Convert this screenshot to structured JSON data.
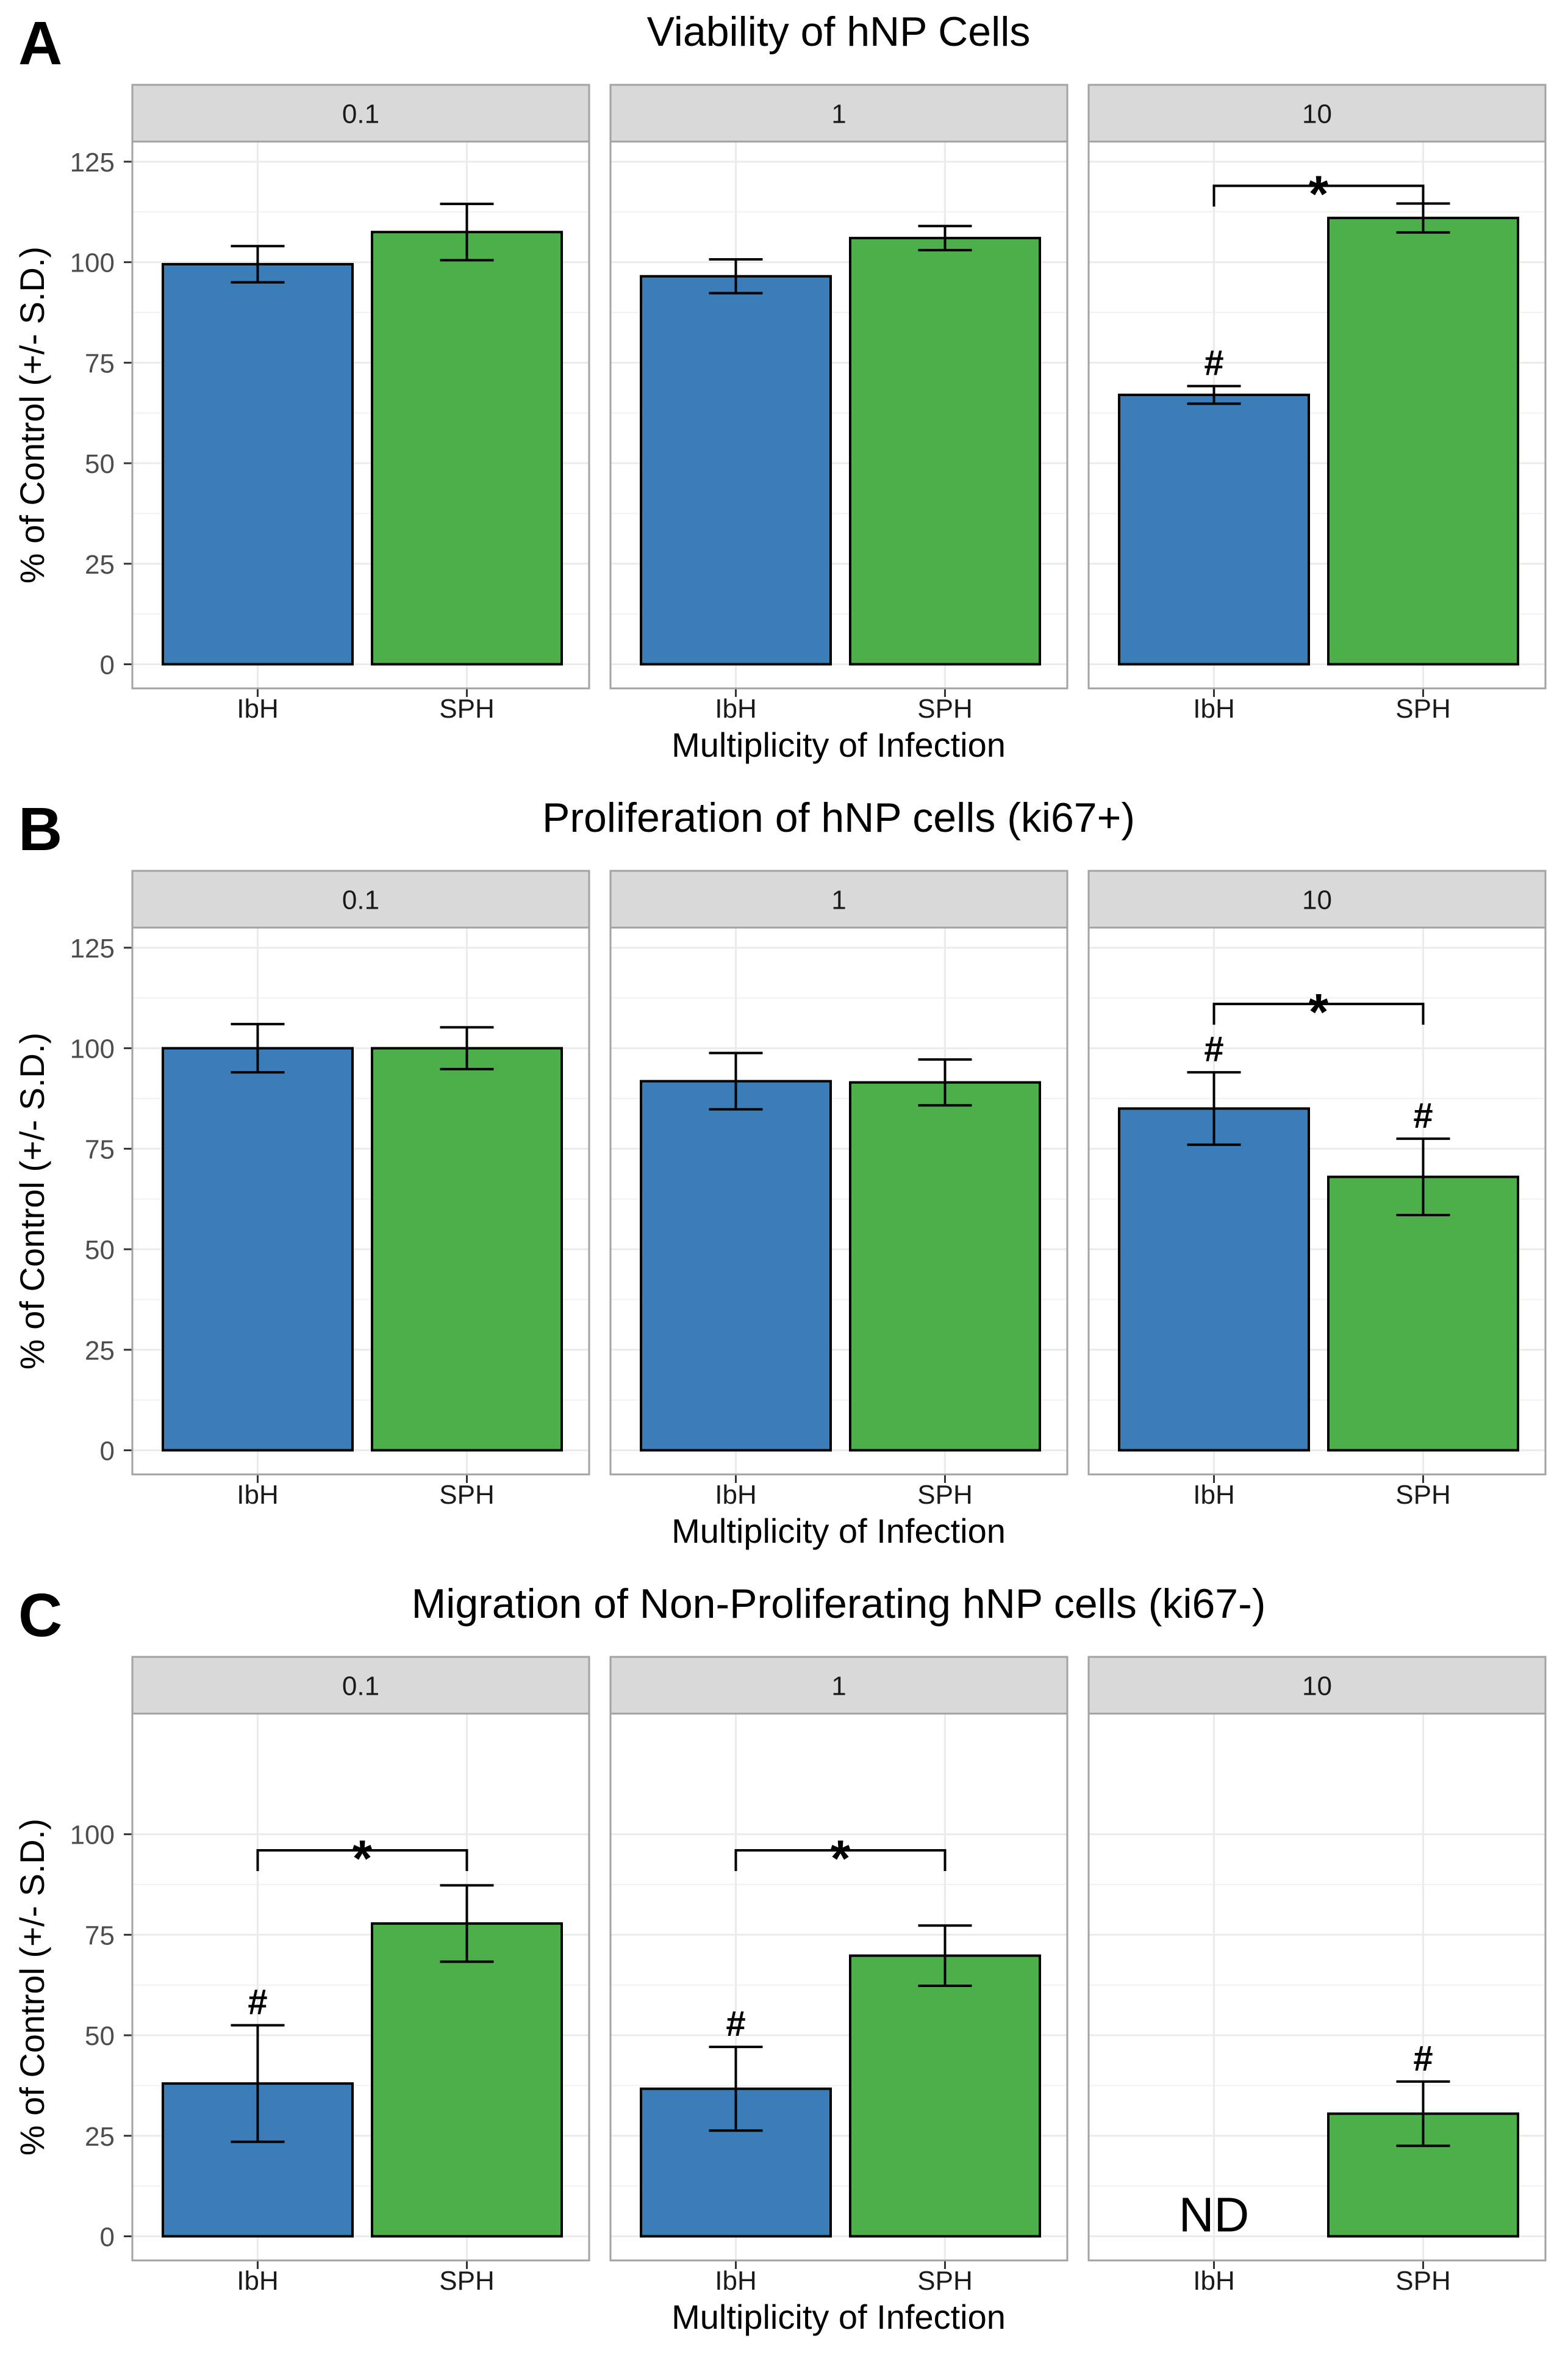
{
  "figure": {
    "colors": {
      "IbH": "#3a7db9",
      "SPH": "#4daf4a",
      "strip": "#d9d9d9",
      "grid": "#ebebeb",
      "panel_border": "#a3a3a3"
    }
  },
  "chart_data": [
    {
      "type": "bar",
      "panel_letter": "A",
      "title": "Viability of hNP Cells",
      "xlabel": "Multiplicity of Infection",
      "ylabel": "% of Control (+/- S.D.)",
      "ylim": [
        -6,
        130
      ],
      "yticks": [
        0,
        25,
        50,
        75,
        100,
        125
      ],
      "categories": [
        "IbH",
        "SPH"
      ],
      "facets": [
        {
          "label": "0.1",
          "values": [
            99.5,
            107.5
          ],
          "sd": [
            4.5,
            7
          ],
          "marks": [
            "",
            ""
          ],
          "nd": [
            false,
            false
          ],
          "bracket": false
        },
        {
          "label": "1",
          "values": [
            96.5,
            106
          ],
          "sd": [
            4.2,
            3
          ],
          "marks": [
            "",
            ""
          ],
          "nd": [
            false,
            false
          ],
          "bracket": false
        },
        {
          "label": "10",
          "values": [
            67,
            111
          ],
          "sd": [
            2.2,
            3.6
          ],
          "marks": [
            "#",
            ""
          ],
          "nd": [
            false,
            false
          ],
          "bracket": true,
          "bracket_level": 119,
          "bracket_label": "*"
        }
      ]
    },
    {
      "type": "bar",
      "panel_letter": "B",
      "title": "Proliferation of hNP cells (ki67+)",
      "xlabel": "Multiplicity of Infection",
      "ylabel": "% of Control (+/- S.D.)",
      "ylim": [
        -6,
        130
      ],
      "yticks": [
        0,
        25,
        50,
        75,
        100,
        125
      ],
      "categories": [
        "IbH",
        "SPH"
      ],
      "facets": [
        {
          "label": "0.1",
          "values": [
            100,
            100
          ],
          "sd": [
            6,
            5.2
          ],
          "marks": [
            "",
            ""
          ],
          "nd": [
            false,
            false
          ],
          "bracket": false
        },
        {
          "label": "1",
          "values": [
            91.8,
            91.5
          ],
          "sd": [
            7,
            5.7
          ],
          "marks": [
            "",
            ""
          ],
          "nd": [
            false,
            false
          ],
          "bracket": false
        },
        {
          "label": "10",
          "values": [
            85,
            68
          ],
          "sd": [
            9,
            9.5
          ],
          "marks": [
            "#",
            "#"
          ],
          "nd": [
            false,
            false
          ],
          "bracket": true,
          "bracket_level": 111,
          "bracket_label": "*"
        }
      ]
    },
    {
      "type": "bar",
      "panel_letter": "C",
      "title": "Migration of Non-Proliferating hNP cells (ki67-)",
      "xlabel": "Multiplicity of Infection",
      "ylabel": "% of Control (+/- S.D.)",
      "ylim": [
        -6,
        130
      ],
      "yticks": [
        0,
        25,
        50,
        75,
        100
      ],
      "categories": [
        "IbH",
        "SPH"
      ],
      "facets": [
        {
          "label": "0.1",
          "values": [
            38,
            77.8
          ],
          "sd": [
            14.5,
            9.5
          ],
          "marks": [
            "#",
            ""
          ],
          "nd": [
            false,
            false
          ],
          "bracket": true,
          "bracket_level": 96,
          "bracket_label": "*"
        },
        {
          "label": "1",
          "values": [
            36.7,
            69.8
          ],
          "sd": [
            10.4,
            7.5
          ],
          "marks": [
            "#",
            ""
          ],
          "nd": [
            false,
            false
          ],
          "bracket": true,
          "bracket_level": 96,
          "bracket_label": "*"
        },
        {
          "label": "10",
          "values": [
            null,
            30.5
          ],
          "sd": [
            null,
            8
          ],
          "marks": [
            "",
            "#"
          ],
          "nd": [
            true,
            false
          ],
          "nd_label": "ND",
          "bracket": false
        }
      ]
    }
  ]
}
